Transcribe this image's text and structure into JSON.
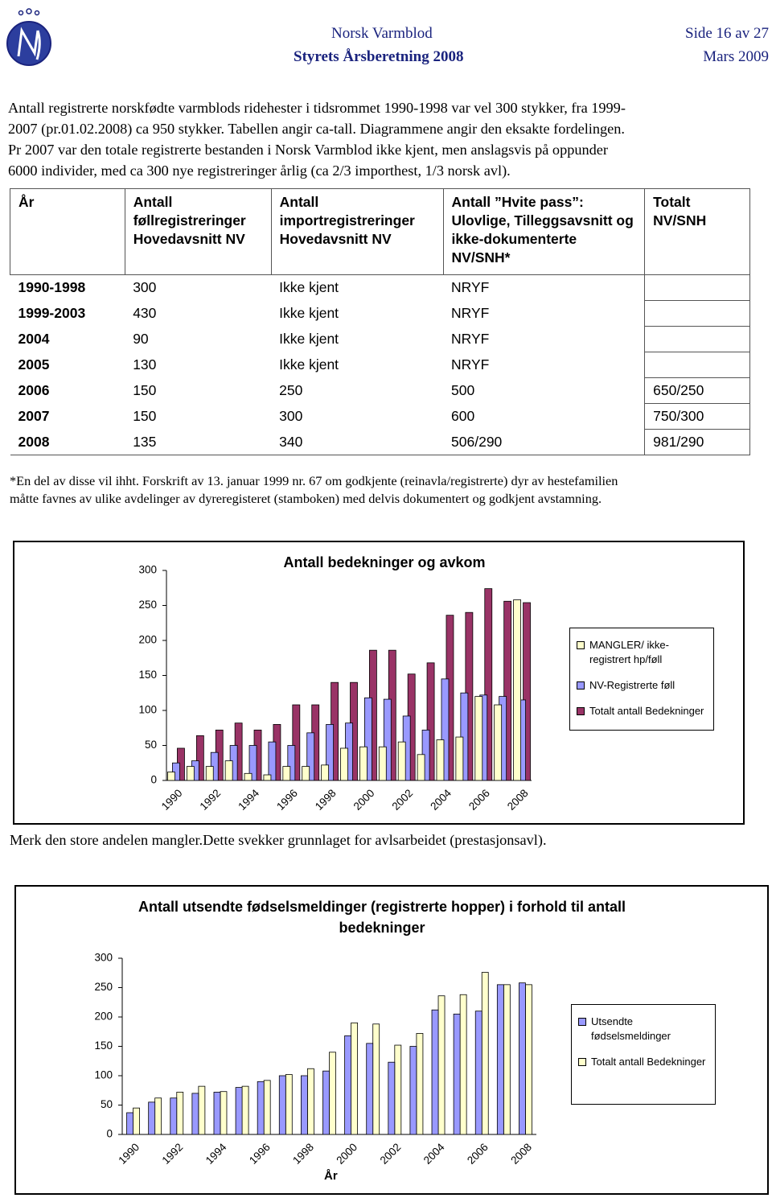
{
  "header": {
    "organization": "Norsk Varmblod",
    "page": "Side 16 av 27",
    "report": "Styrets Årsberetning 2008",
    "date": "Mars 2009"
  },
  "intro": [
    "Antall registrerte norskfødte varmblods ridehester i tidsrommet 1990-1998 var vel 300 stykker, fra 1999-",
    "2007 (pr.01.02.2008) ca 950 stykker. Tabellen angir ca-tall. Diagrammene angir den eksakte fordelingen.",
    "Pr 2007 var den totale registrerte bestanden i Norsk Varmblod ikke kjent, men anslagsvis på oppunder",
    "6000 individer, med ca  300 nye registreringer årlig (ca 2/3 importhest, 1/3 norsk avl)."
  ],
  "table": {
    "header": [
      "År",
      "Antall føllregistreringer Hovedavsnitt NV",
      "Antall importregistreringer Hovedavsnitt NV",
      "Antall ”Hvite pass”: Ulovlige, Tilleggsavsnitt og ikke-dokumenterte NV/SNH*",
      "Totalt NV/SNH"
    ],
    "rows": [
      [
        "1990-1998",
        "300",
        "Ikke kjent",
        "NRYF",
        null
      ],
      [
        "1999-2003",
        "430",
        "Ikke kjent",
        "NRYF",
        null
      ],
      [
        "2004",
        "90",
        "Ikke kjent",
        "NRYF",
        null
      ],
      [
        "2005",
        "130",
        "Ikke kjent",
        "NRYF",
        null
      ],
      [
        "2006",
        "150",
        "250",
        "500",
        "650/250"
      ],
      [
        "2007",
        "150",
        "300",
        "600",
        "750/300"
      ],
      [
        "2008",
        "135",
        "340",
        "506/290",
        "981/290"
      ]
    ]
  },
  "footnote": [
    "*En del av disse vil ihht. Forskrift av 13. januar 1999 nr. 67 om godkjente (reinavla/registrerte) dyr av hestefamilien",
    "måtte favnes av ulike avdelinger av dyreregisteret (stamboken) med delvis dokumentert og godkjent avstamning."
  ],
  "chart_note": "Merk den store andelen mangler.Dette svekker grunnlaget for avlsarbeidet (prestasjonsavl).",
  "chart_data": [
    {
      "type": "bar",
      "title": "Antall bedekninger og avkom",
      "categories": [
        "1990",
        null,
        "1992",
        null,
        "1994",
        null,
        "1996",
        null,
        "1998",
        null,
        "2000",
        null,
        "2002",
        null,
        "2004",
        null,
        "2006",
        null,
        "2008"
      ],
      "series": [
        {
          "name": "MANGLER/ ikke- registrert hp/føll",
          "color": "#ffffcc",
          "values": [
            12,
            20,
            20,
            28,
            10,
            8,
            20,
            20,
            22,
            46,
            48,
            48,
            55,
            37,
            58,
            62,
            120,
            108,
            258
          ]
        },
        {
          "name": "NV-Registrerte føll",
          "color": "#9999ff",
          "values": [
            25,
            28,
            40,
            50,
            50,
            55,
            50,
            68,
            80,
            82,
            118,
            116,
            92,
            72,
            145,
            125,
            122,
            120,
            115
          ]
        },
        {
          "name": "Totalt antall Bedekninger",
          "color": "#993366",
          "values": [
            46,
            64,
            72,
            82,
            72,
            80,
            108,
            108,
            140,
            140,
            186,
            186,
            152,
            168,
            236,
            240,
            274,
            256,
            254
          ]
        }
      ],
      "ylim": [
        0,
        300
      ],
      "yticks": [
        0,
        50,
        100,
        150,
        200,
        250,
        300
      ],
      "grid": false,
      "legend": "right"
    },
    {
      "type": "bar",
      "title": "Antall utsendte fødselsmeldinger (registrerte hopper) i forhold til antall bedekninger",
      "x_label": "År",
      "categories": [
        "1990",
        null,
        "1992",
        null,
        "1994",
        null,
        "1996",
        null,
        "1998",
        null,
        "2000",
        null,
        "2002",
        null,
        "2004",
        null,
        "2006",
        null,
        "2008"
      ],
      "series": [
        {
          "name": "Utsendte fødselsmeldinger",
          "color": "#9999ff",
          "values": [
            37,
            55,
            62,
            70,
            72,
            80,
            90,
            100,
            100,
            108,
            168,
            155,
            123,
            150,
            212,
            205,
            210,
            255,
            258
          ]
        },
        {
          "name": "Totalt antall Bedekninger",
          "color": "#ffffcc",
          "values": [
            45,
            62,
            72,
            82,
            73,
            82,
            92,
            102,
            112,
            140,
            190,
            188,
            152,
            172,
            236,
            238,
            276,
            255,
            255
          ]
        }
      ],
      "ylim": [
        0,
        300
      ],
      "yticks": [
        0,
        50,
        100,
        150,
        200,
        250,
        300
      ],
      "grid": false,
      "legend": "right"
    }
  ]
}
